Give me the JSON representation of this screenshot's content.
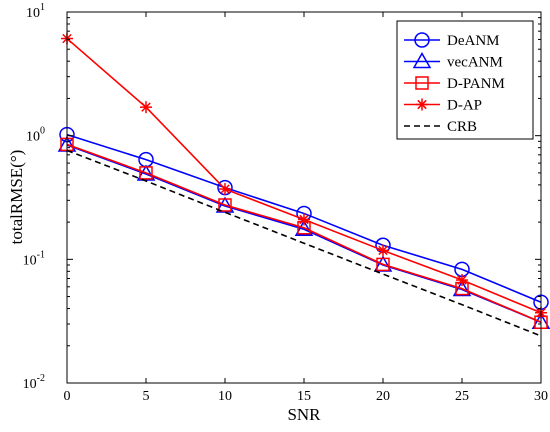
{
  "chart_data": {
    "type": "line",
    "title": "",
    "xlabel": "SNR",
    "ylabel": "totalRMSE(°)",
    "x": [
      0,
      5,
      10,
      15,
      20,
      25,
      30
    ],
    "xlim": [
      0,
      30
    ],
    "ylim": [
      0.01,
      10
    ],
    "yscale": "log",
    "x_ticks": [
      "0",
      "5",
      "10",
      "15",
      "20",
      "25",
      "30"
    ],
    "y_ticks": [
      {
        "value": 0.01,
        "base": "10",
        "exp": "-2"
      },
      {
        "value": 0.1,
        "base": "10",
        "exp": "-1"
      },
      {
        "value": 1,
        "base": "10",
        "exp": "0"
      },
      {
        "value": 10,
        "base": "10",
        "exp": "1"
      }
    ],
    "grid": false,
    "legend_position": "top-right",
    "series": [
      {
        "name": "DeANM",
        "color": "#0000ff",
        "marker": "circle",
        "dash": "solid",
        "values": [
          1.02,
          0.64,
          0.38,
          0.235,
          0.13,
          0.083,
          0.045
        ]
      },
      {
        "name": "vecANM",
        "color": "#0000ff",
        "marker": "triangle",
        "dash": "solid",
        "values": [
          0.84,
          0.49,
          0.27,
          0.175,
          0.09,
          0.057,
          0.031
        ]
      },
      {
        "name": "D-PANM",
        "color": "#ff0000",
        "marker": "square",
        "dash": "solid",
        "values": [
          0.85,
          0.5,
          0.275,
          0.18,
          0.091,
          0.058,
          0.031
        ]
      },
      {
        "name": "D-AP",
        "color": "#ff0000",
        "marker": "asterisk",
        "dash": "solid",
        "values": [
          6.1,
          1.7,
          0.37,
          0.21,
          0.118,
          0.068,
          0.037
        ]
      },
      {
        "name": "CRB",
        "color": "#000000",
        "marker": "none",
        "dash": "dashed",
        "values": [
          0.76,
          0.43,
          0.24,
          0.135,
          0.076,
          0.043,
          0.024
        ]
      }
    ]
  }
}
